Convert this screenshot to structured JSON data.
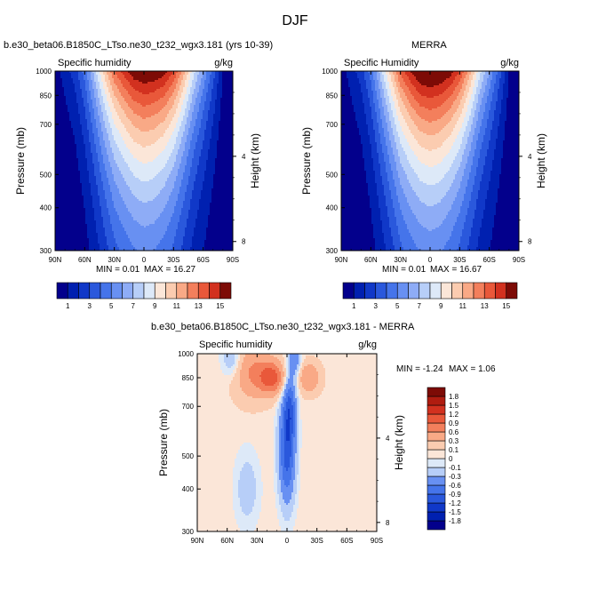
{
  "page": {
    "title": "DJF",
    "left_title": "b.e30_beta06.B1850C_LTso.ne30_t232_wgx3.181 (yrs 10-39)",
    "right_title": "MERRA",
    "bottom_title": "b.e30_beta06.B1850C_LTso.ne30_t232_wgx3.181 - MERRA"
  },
  "chart_data": [
    {
      "type": "contour",
      "panel": "model",
      "title": "b.e30_beta06.B1850C_LTso.ne30_t232_wgx3.181 (yrs 10-39)",
      "left_label": "Specific humidity",
      "right_label": "g/kg",
      "ylabel": "Pressure (mb)",
      "right_axis_label": "Height (km)",
      "x_ticks": [
        "90N",
        "60N",
        "30N",
        "0",
        "30S",
        "60S",
        "90S"
      ],
      "x_values": [
        90,
        60,
        30,
        0,
        -30,
        -60,
        -90
      ],
      "y_ticks": [
        300,
        400,
        500,
        700,
        850,
        1000
      ],
      "y_scale": "log",
      "ylim": [
        1000,
        300
      ],
      "height_ticks": [
        8,
        4
      ],
      "min_label": "MIN =  0.01",
      "max_label": "MAX =  16.27",
      "min": 0.01,
      "max": 16.27,
      "profile": {
        "lat": [
          90,
          70,
          60,
          50,
          40,
          30,
          20,
          10,
          0,
          -10,
          -20,
          -30,
          -40,
          -50,
          -60,
          -70,
          -80,
          -90
        ],
        "surface": [
          0.5,
          2.5,
          4.5,
          7.5,
          10.5,
          13,
          14.5,
          15.8,
          16.27,
          16,
          15.5,
          14,
          11.5,
          8.5,
          6,
          3.5,
          1,
          0.3
        ],
        "halfdepth": [
          0.35,
          0.5,
          0.62,
          0.74,
          0.85,
          0.95,
          1.0,
          1.03,
          1.05,
          1.04,
          0.98,
          0.92,
          0.84,
          0.75,
          0.68,
          0.6,
          0.5,
          0.4
        ]
      }
    },
    {
      "type": "contour",
      "panel": "obs",
      "title": "MERRA",
      "left_label": "Specific Humidity",
      "right_label": "g/kg",
      "ylabel": "Pressure (mb)",
      "right_axis_label": "Height (km)",
      "x_ticks": [
        "90N",
        "60N",
        "30N",
        "0",
        "30S",
        "60S",
        "90S"
      ],
      "x_values": [
        90,
        60,
        30,
        0,
        -30,
        -60,
        -90
      ],
      "y_ticks": [
        300,
        400,
        500,
        700,
        850,
        1000
      ],
      "y_scale": "log",
      "ylim": [
        1000,
        300
      ],
      "height_ticks": [
        8,
        4
      ],
      "min_label": "MIN =  0.01",
      "max_label": "MAX =  16.67",
      "min": 0.01,
      "max": 16.67,
      "profile": {
        "lat": [
          90,
          70,
          60,
          50,
          40,
          30,
          20,
          10,
          0,
          -10,
          -20,
          -30,
          -40,
          -50,
          -60,
          -70,
          -80,
          -90
        ],
        "surface": [
          0.5,
          2.5,
          4.5,
          7.5,
          10.5,
          13.3,
          15,
          16.3,
          16.67,
          16.3,
          15.6,
          14,
          11.5,
          8.5,
          6,
          3.5,
          1,
          0.3
        ],
        "halfdepth": [
          0.35,
          0.5,
          0.62,
          0.74,
          0.85,
          0.95,
          1.0,
          1.03,
          1.05,
          1.04,
          0.98,
          0.92,
          0.84,
          0.75,
          0.68,
          0.6,
          0.5,
          0.4
        ]
      }
    },
    {
      "type": "contour",
      "panel": "difference",
      "title": "b.e30_beta06.B1850C_LTso.ne30_t232_wgx3.181 - MERRA",
      "left_label": "Specific humidity",
      "right_label": "g/kg",
      "ylabel": "Pressure (mb)",
      "right_axis_label": "Height (km)",
      "x_ticks": [
        "90N",
        "60N",
        "30N",
        "0",
        "30S",
        "60S",
        "90S"
      ],
      "x_values": [
        90,
        60,
        30,
        0,
        -30,
        -60,
        -90
      ],
      "y_ticks": [
        300,
        400,
        500,
        700,
        850,
        1000
      ],
      "y_scale": "log",
      "ylim": [
        1000,
        300
      ],
      "height_ticks": [
        8,
        4
      ],
      "min_label": "MIN = -1.24",
      "max_label": "MAX =  1.06",
      "min": -1.24,
      "max": 1.06
    }
  ],
  "colorbar_abs": {
    "levels": [
      1,
      2,
      3,
      4,
      5,
      6,
      7,
      8,
      9,
      10,
      11,
      12,
      13,
      14,
      15
    ],
    "labels": [
      "1",
      "3",
      "5",
      "7",
      "9",
      "11",
      "13",
      "15"
    ],
    "colors": [
      "#03008c",
      "#0020b0",
      "#1038c8",
      "#2a58dc",
      "#4574ea",
      "#6890f2",
      "#8eacf6",
      "#b7cef8",
      "#dde9f8",
      "#fbe6d8",
      "#fbccb0",
      "#f9a986",
      "#f37f5c",
      "#e9583a",
      "#d2311f",
      "#7d0b06"
    ]
  },
  "colorbar_diff": {
    "levels": [
      -1.8,
      -1.5,
      -1.2,
      -0.9,
      -0.6,
      -0.3,
      -0.1,
      0,
      0.1,
      0.3,
      0.6,
      0.9,
      1.2,
      1.5,
      1.8
    ],
    "labels": [
      "-1.8",
      "-1.5",
      "-1.2",
      "-0.9",
      "-0.6",
      "-0.3",
      "-0.1",
      "0",
      "0.1",
      "0.3",
      "0.6",
      "0.9",
      "1.2",
      "1.5",
      "1.8"
    ],
    "colors": [
      "#03008c",
      "#0020b0",
      "#1038c8",
      "#2a58dc",
      "#4574ea",
      "#6890f2",
      "#b7cef8",
      "#dde9f8",
      "#fbe6d8",
      "#fbccb0",
      "#f9a986",
      "#f37f5c",
      "#e9583a",
      "#d2311f",
      "#b01c10",
      "#7d0b06"
    ]
  }
}
